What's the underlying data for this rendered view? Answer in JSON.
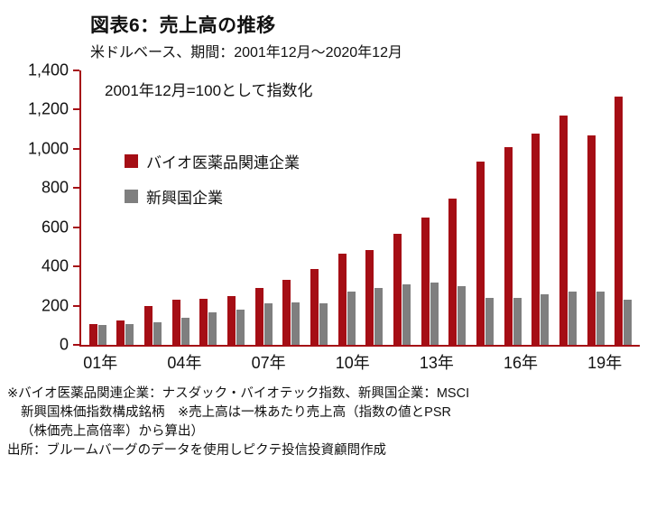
{
  "header": {
    "title": "図表6：売上高の推移",
    "subtitle": "米ドルベース、期間：2001年12月～2020年12月"
  },
  "chart_data": {
    "type": "bar",
    "title": "図表6：売上高の推移",
    "subtitle": "米ドルベース、期間：2001年12月～2020年12月",
    "annotation": "2001年12月=100として指数化",
    "axis_color": "#a50e15",
    "grid": false,
    "legend_position": "upper-left-inside",
    "ylim": [
      0,
      1400
    ],
    "y_tick_values": [
      1400,
      1200,
      1000,
      800,
      600,
      400,
      200,
      0
    ],
    "y_tick_labels": [
      "1,400",
      "1,200",
      "1,000",
      "800",
      "600",
      "400",
      "200",
      "0"
    ],
    "categories": [
      "2001",
      "2002",
      "2003",
      "2004",
      "2005",
      "2006",
      "2007",
      "2008",
      "2009",
      "2010",
      "2011",
      "2012",
      "2013",
      "2014",
      "2015",
      "2016",
      "2017",
      "2018",
      "2019",
      "2020"
    ],
    "x_tick_labels": [
      "01年",
      "04年",
      "07年",
      "10年",
      "13年",
      "16年",
      "19年"
    ],
    "x_tick_positions": [
      0,
      3,
      6,
      9,
      12,
      15,
      18
    ],
    "series": [
      {
        "name": "バイオ医薬品関連企業",
        "color": "#a50e15",
        "values": [
          105,
          125,
          200,
          230,
          235,
          250,
          290,
          330,
          385,
          465,
          485,
          565,
          650,
          745,
          935,
          1010,
          1080,
          1170,
          1070,
          1265
        ]
      },
      {
        "name": "新興国企業",
        "color": "#7f7f7f",
        "values": [
          100,
          105,
          115,
          140,
          165,
          180,
          210,
          215,
          210,
          270,
          290,
          310,
          320,
          300,
          240,
          240,
          260,
          270,
          270,
          230
        ]
      }
    ]
  },
  "footer": {
    "note_lines": [
      "※バイオ医薬品関連企業：ナスダック・バイオテック指数、新興国企業：MSCI",
      "新興国株価指数構成銘柄　※売上高は一株あたり売上高（指数の値とPSR",
      "（株価売上高倍率）から算出）"
    ],
    "source": "出所：ブルームバーグのデータを使用しピクテ投信投資顧問作成"
  }
}
